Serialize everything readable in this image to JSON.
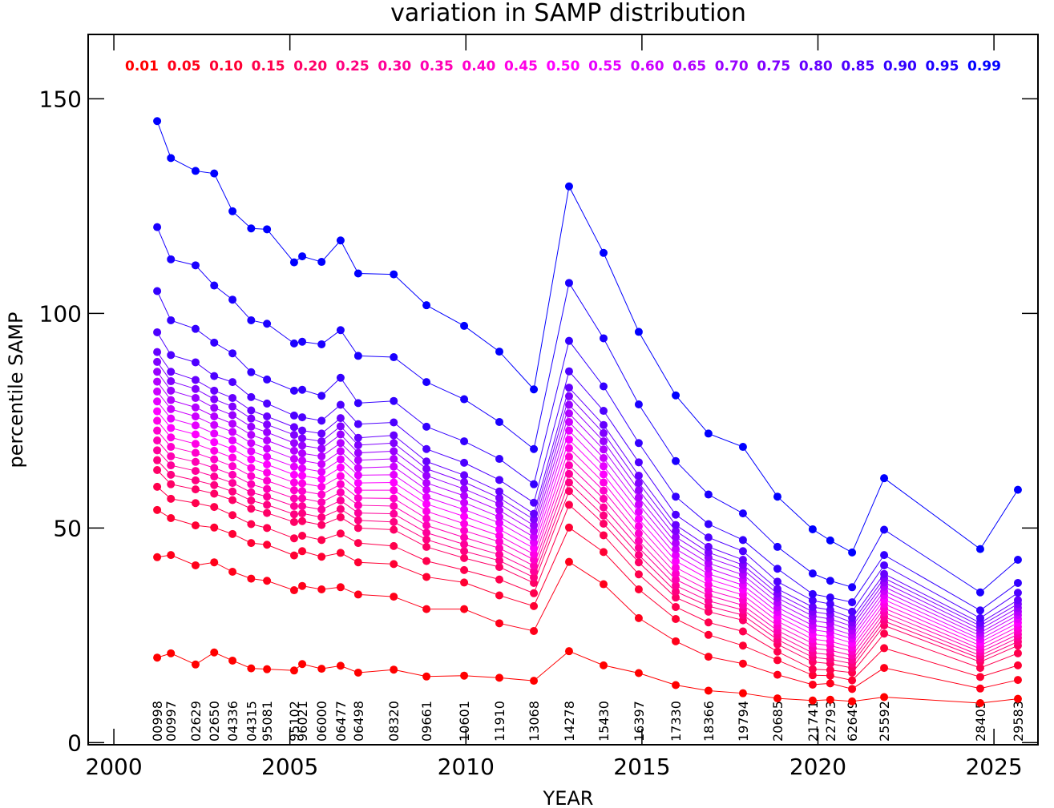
{
  "chart_data": {
    "type": "line",
    "title": "variation in SAMP distribution",
    "x_label": "YEAR",
    "y_label": "percentile SAMP",
    "x": [
      2001.23,
      2001.62,
      2002.32,
      2002.85,
      2003.37,
      2003.9,
      2004.35,
      2005.12,
      2005.35,
      2005.9,
      2006.44,
      2006.94,
      2007.95,
      2008.88,
      2009.95,
      2010.95,
      2011.93,
      2012.93,
      2013.91,
      2014.91,
      2015.96,
      2016.89,
      2017.87,
      2018.85,
      2019.85,
      2020.35,
      2020.97,
      2021.88,
      2024.61,
      2025.68
    ],
    "obsids": [
      "00998",
      "00997",
      "02629",
      "02650",
      "04336",
      "04315",
      "95081",
      "95102",
      "96021",
      "06000",
      "06477",
      "06498",
      "08320",
      "09661",
      "10601",
      "11910",
      "13068",
      "14278",
      "15430",
      "16397",
      "17330",
      "18366",
      "19794",
      "20685",
      "21741",
      "22793",
      "62649",
      "25592",
      "28405",
      "29583"
    ],
    "xlim": [
      1999.27,
      2026.25
    ],
    "ylim": [
      -0.5,
      165
    ],
    "xticks": [
      2000,
      2005,
      2010,
      2015,
      2020,
      2025
    ],
    "yticks": [
      0,
      50,
      100,
      150
    ],
    "series": [
      {
        "name": "0.01",
        "color": "#ff0000",
        "values": [
          19.8,
          20.8,
          18.2,
          21.0,
          19.1,
          17.3,
          17.1,
          16.8,
          18.3,
          17.2,
          17.9,
          16.3,
          17.0,
          15.4,
          15.6,
          15.1,
          14.4,
          21.3,
          18.0,
          16.2,
          13.4,
          12.1,
          11.5,
          10.3,
          9.8,
          10.0,
          9.6,
          10.6,
          9.2,
          10.2
        ]
      },
      {
        "name": "0.05",
        "color": "#ff001a",
        "values": [
          43.2,
          43.7,
          41.3,
          42.0,
          39.8,
          38.2,
          37.7,
          35.5,
          36.5,
          35.7,
          36.2,
          34.5,
          34.0,
          31.1,
          31.1,
          27.8,
          26.0,
          42.1,
          36.9,
          29.0,
          23.6,
          20.0,
          18.4,
          15.8,
          13.5,
          13.8,
          12.5,
          17.4,
          12.6,
          14.6
        ]
      },
      {
        "name": "0.10",
        "color": "#ff0033",
        "values": [
          54.2,
          52.3,
          50.6,
          50.1,
          48.6,
          46.5,
          46.1,
          43.6,
          44.6,
          43.3,
          44.2,
          42.0,
          41.6,
          38.6,
          37.3,
          34.3,
          31.8,
          50.1,
          44.4,
          35.7,
          28.8,
          25.1,
          22.6,
          19.2,
          15.7,
          15.6,
          14.5,
          22.0,
          15.3,
          18.0
        ]
      },
      {
        "name": "0.15",
        "color": "#ff004d",
        "values": [
          59.6,
          56.8,
          55.8,
          54.9,
          53.0,
          50.9,
          50.0,
          47.6,
          48.2,
          47.2,
          48.7,
          46.5,
          45.8,
          42.3,
          40.2,
          38.0,
          34.8,
          55.4,
          48.3,
          39.2,
          31.6,
          28.0,
          25.9,
          21.2,
          17.1,
          16.9,
          16.3,
          25.4,
          17.4,
          20.8
        ]
      },
      {
        "name": "0.20",
        "color": "#ff0066",
        "values": [
          63.5,
          60.2,
          59.0,
          58.0,
          56.5,
          54.5,
          53.5,
          51.4,
          51.6,
          50.7,
          52.5,
          50.0,
          49.6,
          45.6,
          43.0,
          40.9,
          37.2,
          58.6,
          51.0,
          42.0,
          33.8,
          30.5,
          28.5,
          22.9,
          18.8,
          18.4,
          17.4,
          27.3,
          18.8,
          22.6
        ]
      },
      {
        "name": "0.25",
        "color": "#ff0080",
        "values": [
          65.8,
          62.4,
          61.1,
          60.0,
          58.5,
          56.4,
          55.4,
          53.2,
          53.4,
          52.5,
          54.4,
          51.8,
          51.4,
          47.3,
          44.6,
          42.4,
          38.5,
          60.6,
          52.9,
          43.7,
          35.2,
          31.8,
          29.7,
          24.0,
          19.9,
          19.4,
          18.4,
          28.3,
          19.6,
          23.5
        ]
      },
      {
        "name": "0.30",
        "color": "#ff0099",
        "values": [
          68.1,
          64.6,
          63.3,
          62.0,
          60.5,
          58.3,
          57.3,
          55.1,
          55.1,
          54.3,
          56.4,
          53.5,
          53.3,
          48.9,
          46.2,
          43.8,
          39.9,
          62.6,
          54.8,
          45.4,
          36.6,
          33.0,
          30.9,
          25.1,
          20.9,
          20.5,
          19.3,
          29.3,
          20.3,
          24.4
        ]
      },
      {
        "name": "0.35",
        "color": "#ff00b3",
        "values": [
          70.4,
          66.7,
          65.4,
          64.0,
          62.4,
          60.2,
          59.1,
          56.9,
          56.9,
          56.0,
          58.3,
          55.3,
          55.1,
          50.6,
          47.8,
          45.3,
          41.2,
          64.6,
          56.8,
          47.0,
          38.0,
          34.3,
          32.0,
          26.1,
          22.0,
          21.5,
          20.3,
          30.3,
          21.1,
          25.2
        ]
      },
      {
        "name": "0.40",
        "color": "#ff00cc",
        "values": [
          72.7,
          68.9,
          67.5,
          66.0,
          64.4,
          62.1,
          61.0,
          58.8,
          58.6,
          57.8,
          60.2,
          57.0,
          56.9,
          52.2,
          49.4,
          46.8,
          42.6,
          66.6,
          58.7,
          48.7,
          39.4,
          35.5,
          33.2,
          27.2,
          23.1,
          22.6,
          21.3,
          31.3,
          21.8,
          26.1
        ]
      },
      {
        "name": "0.45",
        "color": "#ff00e6",
        "values": [
          75.0,
          71.1,
          69.6,
          68.0,
          66.4,
          64.0,
          62.9,
          60.6,
          60.4,
          59.6,
          62.1,
          58.8,
          58.8,
          53.9,
          51.0,
          48.2,
          43.9,
          68.6,
          60.6,
          50.4,
          40.8,
          36.8,
          34.4,
          28.3,
          24.1,
          23.6,
          22.2,
          32.3,
          22.6,
          27.0
        ]
      },
      {
        "name": "0.50",
        "color": "#ff00ff",
        "values": [
          77.2,
          73.3,
          71.8,
          70.0,
          68.4,
          66.0,
          64.8,
          62.4,
          62.2,
          61.4,
          64.1,
          60.5,
          60.6,
          55.6,
          52.7,
          49.7,
          45.3,
          70.6,
          62.5,
          52.1,
          42.3,
          38.1,
          35.6,
          29.4,
          25.2,
          24.7,
          23.2,
          33.3,
          23.4,
          27.9
        ]
      },
      {
        "name": "0.55",
        "color": "#e600ff",
        "values": [
          79.5,
          75.5,
          73.9,
          72.0,
          70.4,
          67.9,
          66.6,
          64.3,
          63.9,
          63.1,
          66.0,
          62.3,
          62.4,
          57.2,
          54.3,
          51.2,
          46.6,
          72.7,
          64.4,
          53.8,
          43.7,
          39.3,
          36.7,
          30.4,
          26.3,
          25.7,
          24.2,
          34.3,
          24.1,
          28.8
        ]
      },
      {
        "name": "0.60",
        "color": "#cc00ff",
        "values": [
          81.8,
          77.7,
          76.0,
          74.0,
          72.4,
          69.8,
          68.5,
          66.1,
          65.7,
          64.9,
          67.9,
          64.0,
          64.3,
          58.9,
          55.9,
          52.6,
          47.9,
          74.7,
          66.3,
          55.5,
          45.1,
          40.6,
          37.9,
          31.5,
          27.3,
          26.7,
          25.1,
          35.3,
          24.9,
          29.7
        ]
      },
      {
        "name": "0.65",
        "color": "#b300ff",
        "values": [
          84.1,
          79.8,
          78.1,
          76.0,
          74.3,
          71.7,
          70.4,
          68.0,
          67.4,
          66.7,
          69.8,
          65.8,
          66.1,
          60.5,
          57.5,
          54.1,
          49.3,
          76.7,
          68.3,
          57.1,
          46.5,
          41.8,
          39.1,
          32.6,
          28.4,
          27.8,
          26.1,
          36.3,
          25.6,
          30.5
        ]
      },
      {
        "name": "0.70",
        "color": "#9900ff",
        "values": [
          86.4,
          82.0,
          80.3,
          78.0,
          76.3,
          73.6,
          72.3,
          69.8,
          69.2,
          68.5,
          71.8,
          67.5,
          67.9,
          62.2,
          59.1,
          55.6,
          50.6,
          78.7,
          70.2,
          58.8,
          47.9,
          43.1,
          40.3,
          33.7,
          29.5,
          28.8,
          27.1,
          37.3,
          26.4,
          31.4
        ]
      },
      {
        "name": "0.75",
        "color": "#8000ff",
        "values": [
          88.7,
          84.2,
          82.4,
          80.0,
          78.3,
          75.5,
          74.1,
          71.7,
          70.9,
          70.2,
          73.7,
          69.3,
          69.8,
          63.8,
          60.7,
          57.0,
          52.0,
          80.7,
          72.1,
          60.5,
          49.3,
          44.3,
          41.4,
          34.7,
          30.5,
          29.9,
          28.0,
          38.3,
          27.2,
          32.3
        ]
      },
      {
        "name": "0.80",
        "color": "#6600ff",
        "values": [
          91.0,
          86.4,
          84.5,
          82.0,
          80.3,
          77.4,
          76.0,
          73.5,
          72.7,
          72.0,
          75.6,
          71.0,
          71.6,
          65.5,
          62.3,
          58.5,
          53.3,
          82.7,
          74.0,
          62.2,
          50.7,
          45.6,
          42.6,
          35.8,
          31.6,
          30.9,
          29.0,
          39.3,
          27.9,
          33.2
        ]
      },
      {
        "name": "0.85",
        "color": "#4d00ff",
        "values": [
          95.6,
          90.3,
          88.6,
          85.4,
          84.0,
          80.5,
          79.0,
          76.2,
          75.8,
          75.0,
          78.7,
          74.2,
          74.6,
          68.4,
          65.2,
          61.2,
          55.9,
          86.5,
          77.3,
          65.3,
          53.1,
          47.8,
          44.6,
          37.5,
          33.1,
          32.3,
          30.5,
          41.3,
          29.0,
          34.9
        ]
      },
      {
        "name": "0.90",
        "color": "#3300ff",
        "values": [
          105.2,
          98.4,
          96.4,
          93.2,
          90.7,
          86.3,
          84.6,
          82.0,
          82.2,
          80.8,
          85.0,
          79.1,
          79.6,
          73.6,
          70.2,
          66.1,
          60.2,
          93.6,
          83.0,
          69.8,
          57.3,
          50.9,
          47.2,
          40.5,
          34.6,
          33.8,
          32.7,
          43.7,
          30.8,
          37.2
        ]
      },
      {
        "name": "0.95",
        "color": "#1a00ff",
        "values": [
          120.1,
          112.6,
          111.2,
          106.5,
          103.2,
          98.4,
          97.6,
          93.0,
          93.4,
          92.8,
          96.1,
          90.1,
          89.8,
          84.0,
          80.0,
          74.7,
          68.4,
          107.1,
          94.2,
          78.8,
          65.6,
          57.8,
          53.4,
          45.6,
          39.4,
          37.7,
          36.2,
          49.6,
          35.0,
          42.6
        ]
      },
      {
        "name": "0.99",
        "color": "#0000ff",
        "values": [
          144.8,
          136.2,
          133.2,
          132.6,
          123.8,
          119.8,
          119.6,
          111.9,
          113.3,
          112.0,
          117.0,
          109.3,
          109.1,
          101.9,
          97.1,
          91.1,
          82.3,
          129.6,
          114.1,
          95.7,
          80.9,
          72.0,
          68.9,
          57.3,
          49.7,
          47.1,
          44.3,
          61.6,
          45.1,
          58.9
        ]
      }
    ]
  }
}
